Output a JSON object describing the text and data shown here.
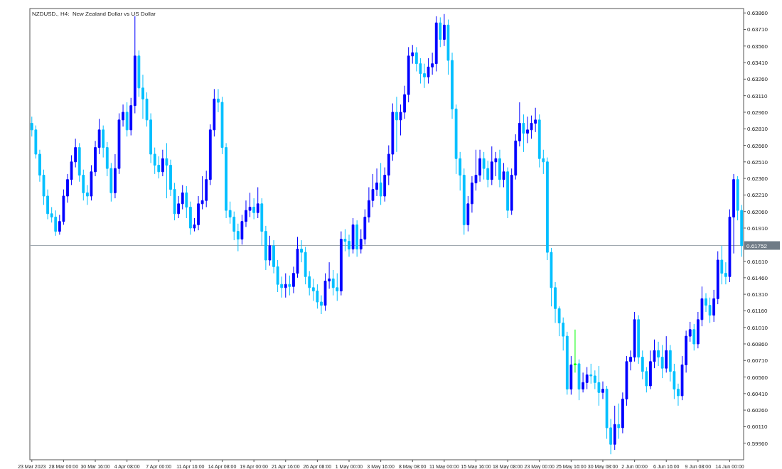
{
  "chart_data": {
    "type": "candlestick",
    "title": "NZDUSD., H4:  New Zealand Dollar vs US Dollar",
    "categories": [
      "23 Mar 2023",
      null,
      null,
      null,
      null,
      null,
      null,
      null,
      "28 Mar 00:00",
      null,
      null,
      null,
      null,
      null,
      null,
      null,
      "30 Mar 16:00",
      null,
      null,
      null,
      null,
      null,
      null,
      null,
      "4 Apr 08:00",
      null,
      null,
      null,
      null,
      null,
      null,
      null,
      "7 Apr 00:00",
      null,
      null,
      null,
      null,
      null,
      null,
      null,
      "11 Apr 16:00",
      null,
      null,
      null,
      null,
      null,
      null,
      null,
      "14 Apr 08:00",
      null,
      null,
      null,
      null,
      null,
      null,
      null,
      "19 Apr 00:00",
      null,
      null,
      null,
      null,
      null,
      null,
      null,
      "21 Apr 16:00",
      null,
      null,
      null,
      null,
      null,
      null,
      null,
      "26 Apr 08:00",
      null,
      null,
      null,
      null,
      null,
      null,
      null,
      "1 May 00:00",
      null,
      null,
      null,
      null,
      null,
      null,
      null,
      "3 May 16:00",
      null,
      null,
      null,
      null,
      null,
      null,
      null,
      "8 May 08:00",
      null,
      null,
      null,
      null,
      null,
      null,
      null,
      "11 May 00:00",
      null,
      null,
      null,
      null,
      null,
      null,
      null,
      "15 May 16:00",
      null,
      null,
      null,
      null,
      null,
      null,
      null,
      "18 May 08:00",
      null,
      null,
      null,
      null,
      null,
      null,
      null,
      "23 May 00:00",
      null,
      null,
      null,
      null,
      null,
      null,
      null,
      "25 May 16:00",
      null,
      null,
      null,
      null,
      null,
      null,
      null,
      "30 May 08:00",
      null,
      null,
      null,
      null,
      null,
      null,
      null,
      "2 Jun 00:00",
      null,
      null,
      null,
      null,
      null,
      null,
      null,
      "6 Jun 16:00",
      null,
      null,
      null,
      null,
      null,
      null,
      null,
      "9 Jun 08:00",
      null,
      null,
      null,
      null,
      null,
      null,
      null,
      "14 Jun 00:00",
      null,
      null,
      null
    ],
    "ohlc": [
      [
        0.6286,
        0.6292,
        0.6274,
        0.628
      ],
      [
        0.628,
        0.6284,
        0.6254,
        0.6258
      ],
      [
        0.6258,
        0.6262,
        0.6233,
        0.6239
      ],
      [
        0.6239,
        0.6244,
        0.6212,
        0.622
      ],
      [
        0.622,
        0.6226,
        0.6199,
        0.6204
      ],
      [
        0.6204,
        0.621,
        0.6196,
        0.6201
      ],
      [
        0.6201,
        0.6207,
        0.6184,
        0.6188
      ],
      [
        0.6188,
        0.6203,
        0.6185,
        0.6197
      ],
      [
        0.6197,
        0.6226,
        0.6194,
        0.622
      ],
      [
        0.622,
        0.624,
        0.6214,
        0.6235
      ],
      [
        0.6235,
        0.6257,
        0.623,
        0.6251
      ],
      [
        0.6251,
        0.6272,
        0.6246,
        0.6264
      ],
      [
        0.6264,
        0.6268,
        0.6233,
        0.6239
      ],
      [
        0.6239,
        0.6244,
        0.6216,
        0.6223
      ],
      [
        0.6223,
        0.623,
        0.6212,
        0.622
      ],
      [
        0.622,
        0.6248,
        0.6216,
        0.6242
      ],
      [
        0.6242,
        0.627,
        0.6238,
        0.6264
      ],
      [
        0.6264,
        0.629,
        0.6258,
        0.628
      ],
      [
        0.628,
        0.6284,
        0.6255,
        0.6264
      ],
      [
        0.6264,
        0.6269,
        0.6238,
        0.6245
      ],
      [
        0.6245,
        0.625,
        0.6215,
        0.6223
      ],
      [
        0.6223,
        0.6258,
        0.6218,
        0.6245
      ],
      [
        0.6245,
        0.6295,
        0.624,
        0.6289
      ],
      [
        0.6289,
        0.6303,
        0.6283,
        0.6296
      ],
      [
        0.6296,
        0.6305,
        0.6274,
        0.628
      ],
      [
        0.628,
        0.6309,
        0.6275,
        0.6302
      ],
      [
        0.6302,
        0.6383,
        0.6295,
        0.6347
      ],
      [
        0.6347,
        0.6352,
        0.631,
        0.6318
      ],
      [
        0.6318,
        0.633,
        0.629,
        0.6308
      ],
      [
        0.6308,
        0.6314,
        0.6283,
        0.6289
      ],
      [
        0.6289,
        0.6295,
        0.625,
        0.6258
      ],
      [
        0.6258,
        0.6264,
        0.624,
        0.6248
      ],
      [
        0.6248,
        0.6256,
        0.6236,
        0.6242
      ],
      [
        0.6242,
        0.6262,
        0.6238,
        0.6254
      ],
      [
        0.6254,
        0.6268,
        0.6218,
        0.6248
      ],
      [
        0.6248,
        0.6253,
        0.622,
        0.6226
      ],
      [
        0.6226,
        0.6232,
        0.6198,
        0.6204
      ],
      [
        0.6204,
        0.622,
        0.62,
        0.6213
      ],
      [
        0.6213,
        0.623,
        0.6208,
        0.6223
      ],
      [
        0.6223,
        0.6229,
        0.62,
        0.621
      ],
      [
        0.621,
        0.6215,
        0.6185,
        0.6191
      ],
      [
        0.6191,
        0.62,
        0.6188,
        0.6194
      ],
      [
        0.6194,
        0.622,
        0.6189,
        0.6213
      ],
      [
        0.6213,
        0.6238,
        0.6208,
        0.6216
      ],
      [
        0.6216,
        0.6243,
        0.621,
        0.6235
      ],
      [
        0.6235,
        0.6285,
        0.623,
        0.628
      ],
      [
        0.628,
        0.6317,
        0.6274,
        0.6308
      ],
      [
        0.6308,
        0.6317,
        0.6296,
        0.6305
      ],
      [
        0.6305,
        0.631,
        0.6258,
        0.6264
      ],
      [
        0.6264,
        0.6268,
        0.62,
        0.6207
      ],
      [
        0.6207,
        0.6215,
        0.6195,
        0.6201
      ],
      [
        0.6201,
        0.6206,
        0.618,
        0.6188
      ],
      [
        0.6188,
        0.6195,
        0.617,
        0.6181
      ],
      [
        0.6181,
        0.6203,
        0.6176,
        0.6197
      ],
      [
        0.6197,
        0.6216,
        0.6192,
        0.6207
      ],
      [
        0.6207,
        0.6223,
        0.6201,
        0.621
      ],
      [
        0.621,
        0.6218,
        0.6199,
        0.6205
      ],
      [
        0.6205,
        0.6228,
        0.62,
        0.6213
      ],
      [
        0.6213,
        0.6218,
        0.6175,
        0.6188
      ],
      [
        0.6188,
        0.6193,
        0.6153,
        0.6162
      ],
      [
        0.6162,
        0.6184,
        0.6157,
        0.6175
      ],
      [
        0.6175,
        0.618,
        0.615,
        0.6156
      ],
      [
        0.6156,
        0.6162,
        0.6133,
        0.614
      ],
      [
        0.614,
        0.6147,
        0.6128,
        0.6137
      ],
      [
        0.6137,
        0.615,
        0.6128,
        0.614
      ],
      [
        0.614,
        0.6148,
        0.613,
        0.6138
      ],
      [
        0.6138,
        0.6156,
        0.6132,
        0.615
      ],
      [
        0.615,
        0.6183,
        0.6146,
        0.6172
      ],
      [
        0.6172,
        0.618,
        0.616,
        0.6169
      ],
      [
        0.6169,
        0.6174,
        0.614,
        0.6147
      ],
      [
        0.6147,
        0.6152,
        0.613,
        0.6137
      ],
      [
        0.6137,
        0.6145,
        0.6125,
        0.6134
      ],
      [
        0.6134,
        0.614,
        0.6118,
        0.6124
      ],
      [
        0.6124,
        0.613,
        0.6113,
        0.6121
      ],
      [
        0.6121,
        0.615,
        0.6116,
        0.6143
      ],
      [
        0.6143,
        0.616,
        0.6136,
        0.6145
      ],
      [
        0.6145,
        0.6153,
        0.613,
        0.6137
      ],
      [
        0.6137,
        0.615,
        0.6125,
        0.6134
      ],
      [
        0.6134,
        0.6188,
        0.613,
        0.6181
      ],
      [
        0.6181,
        0.619,
        0.617,
        0.6179
      ],
      [
        0.6179,
        0.6185,
        0.6165,
        0.6172
      ],
      [
        0.6172,
        0.62,
        0.6168,
        0.6194
      ],
      [
        0.6194,
        0.6198,
        0.6165,
        0.6172
      ],
      [
        0.6172,
        0.619,
        0.6168,
        0.6181
      ],
      [
        0.6181,
        0.6208,
        0.6176,
        0.6201
      ],
      [
        0.6201,
        0.6228,
        0.6196,
        0.6216
      ],
      [
        0.6216,
        0.624,
        0.621,
        0.6226
      ],
      [
        0.6226,
        0.6245,
        0.622,
        0.6232
      ],
      [
        0.6232,
        0.625,
        0.6212,
        0.622
      ],
      [
        0.622,
        0.6246,
        0.6215,
        0.6239
      ],
      [
        0.6239,
        0.6266,
        0.623,
        0.6258
      ],
      [
        0.6258,
        0.6304,
        0.6252,
        0.6296
      ],
      [
        0.6296,
        0.631,
        0.626,
        0.6289
      ],
      [
        0.6289,
        0.6303,
        0.6275,
        0.6296
      ],
      [
        0.6296,
        0.632,
        0.629,
        0.6312
      ],
      [
        0.6312,
        0.6355,
        0.6305,
        0.6347
      ],
      [
        0.6347,
        0.6357,
        0.634,
        0.635
      ],
      [
        0.635,
        0.6355,
        0.6333,
        0.634
      ],
      [
        0.634,
        0.6345,
        0.6322,
        0.6331
      ],
      [
        0.6331,
        0.634,
        0.6318,
        0.6328
      ],
      [
        0.6328,
        0.6345,
        0.6322,
        0.6337
      ],
      [
        0.6337,
        0.635,
        0.633,
        0.634
      ],
      [
        0.634,
        0.6383,
        0.6333,
        0.6377
      ],
      [
        0.6377,
        0.6382,
        0.6355,
        0.6362
      ],
      [
        0.6362,
        0.6385,
        0.6356,
        0.6375
      ],
      [
        0.6375,
        0.638,
        0.633,
        0.6343
      ],
      [
        0.6343,
        0.635,
        0.629,
        0.6299
      ],
      [
        0.6299,
        0.6303,
        0.624,
        0.6254
      ],
      [
        0.6254,
        0.626,
        0.6225,
        0.6239
      ],
      [
        0.6239,
        0.6245,
        0.6185,
        0.6194
      ],
      [
        0.6194,
        0.622,
        0.6188,
        0.6213
      ],
      [
        0.6213,
        0.6238,
        0.6205,
        0.6232
      ],
      [
        0.6232,
        0.6262,
        0.6225,
        0.6239
      ],
      [
        0.6239,
        0.6262,
        0.6233,
        0.6254
      ],
      [
        0.6254,
        0.626,
        0.6235,
        0.6245
      ],
      [
        0.6245,
        0.6252,
        0.6228,
        0.6235
      ],
      [
        0.6235,
        0.6265,
        0.623,
        0.6251
      ],
      [
        0.6251,
        0.626,
        0.6238,
        0.6254
      ],
      [
        0.6254,
        0.6262,
        0.6228,
        0.6235
      ],
      [
        0.6235,
        0.625,
        0.6228,
        0.6242
      ],
      [
        0.6242,
        0.6246,
        0.62,
        0.6207
      ],
      [
        0.6207,
        0.6245,
        0.6203,
        0.6239
      ],
      [
        0.6239,
        0.6276,
        0.6235,
        0.627
      ],
      [
        0.627,
        0.6305,
        0.6265,
        0.6286
      ],
      [
        0.6286,
        0.6294,
        0.626,
        0.6277
      ],
      [
        0.6277,
        0.6292,
        0.6268,
        0.628
      ],
      [
        0.628,
        0.6293,
        0.6272,
        0.6286
      ],
      [
        0.6286,
        0.63,
        0.6278,
        0.6289
      ],
      [
        0.6289,
        0.6294,
        0.6246,
        0.6254
      ],
      [
        0.6254,
        0.6262,
        0.624,
        0.6251
      ],
      [
        0.6251,
        0.6255,
        0.6162,
        0.6169
      ],
      [
        0.6169,
        0.6173,
        0.612,
        0.6137
      ],
      [
        0.6137,
        0.6142,
        0.6105,
        0.6118
      ],
      [
        0.6118,
        0.612,
        0.6093,
        0.6105
      ],
      [
        0.6105,
        0.611,
        0.608,
        0.6093
      ],
      [
        0.6093,
        0.6097,
        0.604,
        0.6045
      ],
      [
        0.6045,
        0.6075,
        0.604,
        0.6067
      ],
      [
        0.6067,
        0.6099,
        0.606,
        0.6068
      ],
      [
        0.6068,
        0.6072,
        0.6035,
        0.6045
      ],
      [
        0.6045,
        0.606,
        0.6042,
        0.6051
      ],
      [
        0.6051,
        0.6065,
        0.6045,
        0.6058
      ],
      [
        0.6058,
        0.6068,
        0.605,
        0.6057
      ],
      [
        0.6057,
        0.6062,
        0.6045,
        0.6051
      ],
      [
        0.6051,
        0.6066,
        0.603,
        0.6042
      ],
      [
        0.6042,
        0.6052,
        0.6036,
        0.6045
      ],
      [
        0.6045,
        0.6048,
        0.6,
        0.601
      ],
      [
        0.601,
        0.6018,
        0.5986,
        0.5995
      ],
      [
        0.5995,
        0.603,
        0.599,
        0.6013
      ],
      [
        0.6013,
        0.6032,
        0.6,
        0.601
      ],
      [
        0.601,
        0.6042,
        0.6005,
        0.6036
      ],
      [
        0.6036,
        0.6075,
        0.603,
        0.607
      ],
      [
        0.607,
        0.608,
        0.6062,
        0.6074
      ],
      [
        0.6074,
        0.6115,
        0.607,
        0.6108
      ],
      [
        0.6108,
        0.6112,
        0.6068,
        0.6074
      ],
      [
        0.6074,
        0.608,
        0.6054,
        0.6061
      ],
      [
        0.6061,
        0.6065,
        0.6042,
        0.6048
      ],
      [
        0.6048,
        0.608,
        0.6045,
        0.607
      ],
      [
        0.607,
        0.609,
        0.6064,
        0.608
      ],
      [
        0.608,
        0.6088,
        0.6066,
        0.6074
      ],
      [
        0.6074,
        0.6085,
        0.6055,
        0.6064
      ],
      [
        0.6064,
        0.6093,
        0.606,
        0.608
      ],
      [
        0.608,
        0.6085,
        0.6052,
        0.6061
      ],
      [
        0.6061,
        0.6068,
        0.6036,
        0.6045
      ],
      [
        0.6045,
        0.605,
        0.603,
        0.6039
      ],
      [
        0.6039,
        0.6075,
        0.6035,
        0.6067
      ],
      [
        0.6067,
        0.6098,
        0.606,
        0.6093
      ],
      [
        0.6093,
        0.6106,
        0.6088,
        0.6099
      ],
      [
        0.6099,
        0.6104,
        0.608,
        0.6086
      ],
      [
        0.6086,
        0.6115,
        0.6082,
        0.6108
      ],
      [
        0.6108,
        0.6138,
        0.6102,
        0.6127
      ],
      [
        0.6127,
        0.6132,
        0.6115,
        0.6121
      ],
      [
        0.6121,
        0.6128,
        0.6105,
        0.6112
      ],
      [
        0.6112,
        0.6135,
        0.6106,
        0.6127
      ],
      [
        0.6127,
        0.617,
        0.6122,
        0.6162
      ],
      [
        0.6162,
        0.6175,
        0.614,
        0.615
      ],
      [
        0.615,
        0.616,
        0.614,
        0.6147
      ],
      [
        0.6147,
        0.6208,
        0.6142,
        0.6201
      ],
      [
        0.6201,
        0.624,
        0.6168,
        0.6235
      ],
      [
        0.6235,
        0.6238,
        0.6198,
        0.6207
      ],
      [
        0.6207,
        0.6212,
        0.6165,
        0.6175
      ]
    ],
    "colors": [
      "#00bfff",
      "#00bfff",
      "#00bfff",
      "#00bfff",
      "#00bfff",
      "#00bfff",
      "#00bfff",
      "#0000ff",
      "#0000ff",
      "#0000ff",
      "#0000ff",
      "#0000ff",
      "#00bfff",
      "#00bfff",
      "#00bfff",
      "#0000ff",
      "#0000ff",
      "#0000ff",
      "#00bfff",
      "#00bfff",
      "#00bfff",
      "#0000ff",
      "#0000ff",
      "#0000ff",
      "#00bfff",
      "#0000ff",
      "#0000ff",
      "#00bfff",
      "#00bfff",
      "#00bfff",
      "#00bfff",
      "#00bfff",
      "#00bfff",
      "#0000ff",
      "#00bfff",
      "#00bfff",
      "#00bfff",
      "#0000ff",
      "#0000ff",
      "#00bfff",
      "#00bfff",
      "#0000ff",
      "#0000ff",
      "#0000ff",
      "#0000ff",
      "#0000ff",
      "#0000ff",
      "#00bfff",
      "#00bfff",
      "#00bfff",
      "#00bfff",
      "#00bfff",
      "#00bfff",
      "#0000ff",
      "#0000ff",
      "#0000ff",
      "#00bfff",
      "#0000ff",
      "#00bfff",
      "#00bfff",
      "#0000ff",
      "#00bfff",
      "#00bfff",
      "#00bfff",
      "#0000ff",
      "#00bfff",
      "#0000ff",
      "#0000ff",
      "#00bfff",
      "#00bfff",
      "#00bfff",
      "#00bfff",
      "#00bfff",
      "#00bfff",
      "#0000ff",
      "#0000ff",
      "#00bfff",
      "#00bfff",
      "#0000ff",
      "#00bfff",
      "#00bfff",
      "#0000ff",
      "#00bfff",
      "#0000ff",
      "#0000ff",
      "#0000ff",
      "#0000ff",
      "#0000ff",
      "#00bfff",
      "#0000ff",
      "#0000ff",
      "#0000ff",
      "#00bfff",
      "#0000ff",
      "#0000ff",
      "#0000ff",
      "#0000ff",
      "#00bfff",
      "#00bfff",
      "#00bfff",
      "#0000ff",
      "#0000ff",
      "#0000ff",
      "#00bfff",
      "#0000ff",
      "#00bfff",
      "#00bfff",
      "#00bfff",
      "#00bfff",
      "#00bfff",
      "#0000ff",
      "#0000ff",
      "#0000ff",
      "#0000ff",
      "#00bfff",
      "#00bfff",
      "#0000ff",
      "#0000ff",
      "#00bfff",
      "#0000ff",
      "#00bfff",
      "#0000ff",
      "#0000ff",
      "#0000ff",
      "#00bfff",
      "#0000ff",
      "#0000ff",
      "#0000ff",
      "#00bfff",
      "#00bfff",
      "#00bfff",
      "#00bfff",
      "#00bfff",
      "#00bfff",
      "#00bfff",
      "#00bfff",
      "#0000ff",
      "#00ff00",
      "#00bfff",
      "#0000ff",
      "#0000ff",
      "#00bfff",
      "#00bfff",
      "#00bfff",
      "#0000ff",
      "#00bfff",
      "#00bfff",
      "#0000ff",
      "#00bfff",
      "#0000ff",
      "#0000ff",
      "#0000ff",
      "#0000ff",
      "#00bfff",
      "#00bfff",
      "#00bfff",
      "#0000ff",
      "#0000ff",
      "#00bfff",
      "#00bfff",
      "#0000ff",
      "#00bfff",
      "#00bfff",
      "#00bfff",
      "#0000ff",
      "#0000ff",
      "#0000ff",
      "#00bfff",
      "#0000ff",
      "#0000ff",
      "#00bfff",
      "#00bfff",
      "#0000ff",
      "#0000ff",
      "#00bfff",
      "#00bfff",
      "#0000ff",
      "#0000ff",
      "#00bfff",
      "#00bfff"
    ],
    "ylim": [
      0.5981,
      0.639
    ],
    "yticks": [
      {
        "value": 0.6386,
        "label": "0.63860"
      },
      {
        "value": 0.6371,
        "label": "0.63710"
      },
      {
        "value": 0.6356,
        "label": "0.63560"
      },
      {
        "value": 0.6341,
        "label": "0.63410"
      },
      {
        "value": 0.6326,
        "label": "0.63260"
      },
      {
        "value": 0.6311,
        "label": "0.63110"
      },
      {
        "value": 0.6296,
        "label": "0.62960"
      },
      {
        "value": 0.6281,
        "label": "0.62810"
      },
      {
        "value": 0.6266,
        "label": "0.62660"
      },
      {
        "value": 0.6251,
        "label": "0.62510"
      },
      {
        "value": 0.6236,
        "label": "0.62360"
      },
      {
        "value": 0.6221,
        "label": "0.62210"
      },
      {
        "value": 0.6206,
        "label": "0.62060"
      },
      {
        "value": 0.6191,
        "label": "0.61910"
      },
      {
        "value": 0.6161,
        "label": "0.61610"
      },
      {
        "value": 0.6146,
        "label": "0.61460"
      },
      {
        "value": 0.6131,
        "label": "0.61310"
      },
      {
        "value": 0.6116,
        "label": "0.61160"
      },
      {
        "value": 0.6101,
        "label": "0.61010"
      },
      {
        "value": 0.6086,
        "label": "0.60860"
      },
      {
        "value": 0.6071,
        "label": "0.60710"
      },
      {
        "value": 0.6056,
        "label": "0.60560"
      },
      {
        "value": 0.6041,
        "label": "0.60410"
      },
      {
        "value": 0.6026,
        "label": "0.60260"
      },
      {
        "value": 0.6011,
        "label": "0.60110"
      },
      {
        "value": 0.5996,
        "label": "0.59960"
      }
    ],
    "ref_lines": [
      {
        "axis": "y",
        "value": 0.61752,
        "label": "0.61752",
        "color": "#a0a8b0"
      }
    ]
  }
}
